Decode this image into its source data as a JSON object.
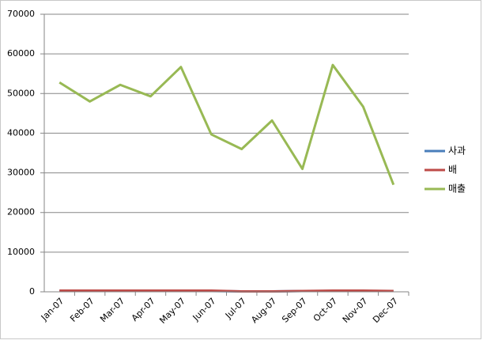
{
  "chart_data": {
    "type": "line",
    "categories": [
      "Jan-07",
      "Feb-07",
      "Mar-07",
      "Apr-07",
      "May-07",
      "Jun-07",
      "Jul-07",
      "Aug-07",
      "Sep-07",
      "Oct-07",
      "Nov-07",
      "Dec-07"
    ],
    "series": [
      {
        "name": "사과",
        "color": "#4a7ebb",
        "values": [
          200,
          200,
          200,
          200,
          200,
          200,
          100,
          100,
          200,
          200,
          200,
          200
        ]
      },
      {
        "name": "배",
        "color": "#be4b48",
        "values": [
          300,
          300,
          300,
          300,
          300,
          300,
          100,
          100,
          200,
          300,
          300,
          200
        ]
      },
      {
        "name": "매출",
        "color": "#98b954",
        "values": [
          52800,
          48000,
          52200,
          49300,
          56700,
          39700,
          36000,
          43200,
          31000,
          57200,
          46700,
          27000
        ]
      }
    ],
    "ylim": [
      0,
      70000
    ],
    "yticks": [
      0,
      10000,
      20000,
      30000,
      40000,
      50000,
      60000,
      70000
    ],
    "grid": true,
    "legend": "right"
  }
}
